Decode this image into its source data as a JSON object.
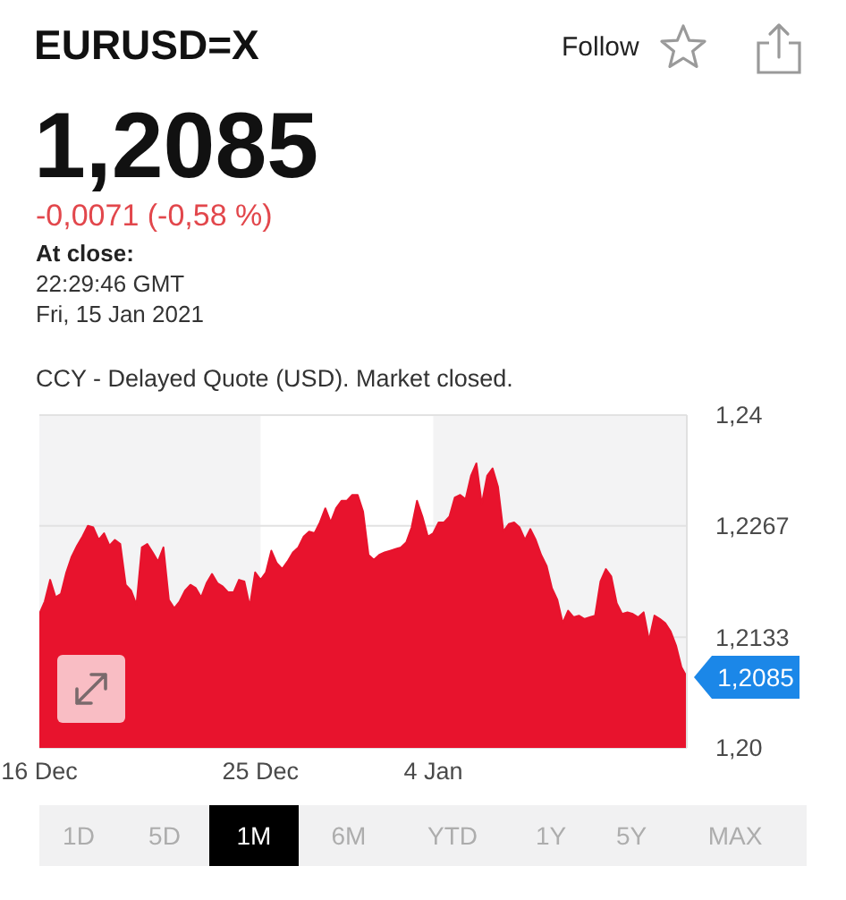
{
  "chart_data": {
    "type": "area",
    "title": "EURUSD=X",
    "subtitle": "CCY - Delayed Quote (USD). Market closed.",
    "annotations": [
      "1,2085",
      "-0,0071 (-0,58 %)",
      "At close:",
      "22:29:46 GMT",
      "Fri, 15 Jan 2021",
      "Follow",
      "1D",
      "5D",
      "1M",
      "6M",
      "YTD",
      "1Y",
      "5Y",
      "MAX",
      "1,2085"
    ],
    "categories": [
      "16 Dec",
      null,
      null,
      null,
      null,
      null,
      null,
      null,
      null,
      null,
      null,
      null,
      null,
      null,
      null,
      null,
      null,
      null,
      null,
      null,
      null,
      null,
      null,
      null,
      null,
      null,
      null,
      null,
      null,
      null,
      null,
      null,
      null,
      null,
      null,
      null,
      null,
      null,
      null,
      null,
      null,
      "25 Dec",
      null,
      null,
      null,
      null,
      null,
      null,
      null,
      null,
      null,
      null,
      null,
      null,
      null,
      null,
      null,
      null,
      null,
      null,
      null,
      null,
      null,
      null,
      null,
      null,
      null,
      null,
      null,
      null,
      null,
      null,
      null,
      "4 Jan",
      null,
      null,
      null,
      null,
      null,
      null,
      null,
      null,
      null,
      null,
      null,
      null,
      null,
      null,
      null,
      null,
      null,
      null,
      null,
      null,
      null,
      null,
      null,
      null,
      null,
      null,
      null,
      null,
      null,
      null,
      null,
      null,
      null,
      null,
      null,
      null,
      null,
      null,
      null,
      null,
      null,
      null,
      null,
      null,
      null,
      null,
      null
    ],
    "values": [
      1.2161,
      1.2176,
      1.2202,
      1.2181,
      1.2185,
      1.2211,
      1.223,
      1.2243,
      1.2254,
      1.2267,
      1.2265,
      1.225,
      1.2258,
      1.2243,
      1.225,
      1.2245,
      1.2196,
      1.2189,
      1.2172,
      1.2241,
      1.2245,
      1.2235,
      1.2224,
      1.2241,
      1.2178,
      1.2168,
      1.2176,
      1.2189,
      1.2196,
      1.2192,
      1.2181,
      1.2198,
      1.2209,
      1.2198,
      1.2194,
      1.2187,
      1.2187,
      1.2202,
      1.22,
      1.217,
      1.2211,
      1.2202,
      1.2211,
      1.2237,
      1.2222,
      1.2215,
      1.2224,
      1.2235,
      1.2241,
      1.2254,
      1.226,
      1.2258,
      1.2271,
      1.2288,
      1.2271,
      1.2288,
      1.2297,
      1.2297,
      1.2304,
      1.2304,
      1.2284,
      1.2232,
      1.2226,
      1.2232,
      1.2235,
      1.2237,
      1.2239,
      1.2241,
      1.2247,
      1.2265,
      1.2297,
      1.2278,
      1.2254,
      1.2258,
      1.2271,
      1.2271,
      1.2278,
      1.2301,
      1.2304,
      1.2299,
      1.2327,
      1.2342,
      1.2293,
      1.2327,
      1.2336,
      1.2314,
      1.226,
      1.2269,
      1.2271,
      1.2265,
      1.225,
      1.2263,
      1.225,
      1.2232,
      1.2219,
      1.2192,
      1.2178,
      1.215,
      1.2165,
      1.2157,
      1.2159,
      1.2155,
      1.2157,
      1.2159,
      1.22,
      1.2215,
      1.2206,
      1.2174,
      1.2161,
      1.2163,
      1.2161,
      1.2157,
      1.2163,
      1.2129,
      1.2159,
      1.2155,
      1.215,
      1.214,
      1.2123,
      1.2097,
      1.2085
    ],
    "color": "#e8132d",
    "ylim": [
      1.2,
      1.24
    ],
    "yticks": [
      {
        "value": 1.2,
        "label": "1,20"
      },
      {
        "value": 1.2133,
        "label": "1,2133"
      },
      {
        "value": 1.2267,
        "label": "1,2267"
      },
      {
        "value": 1.24,
        "label": "1,24"
      }
    ],
    "grid": "y",
    "bands": [
      {
        "axis": "x",
        "from": "25 Dec",
        "to": "4 Jan",
        "color": "#ffffff"
      }
    ]
  }
}
